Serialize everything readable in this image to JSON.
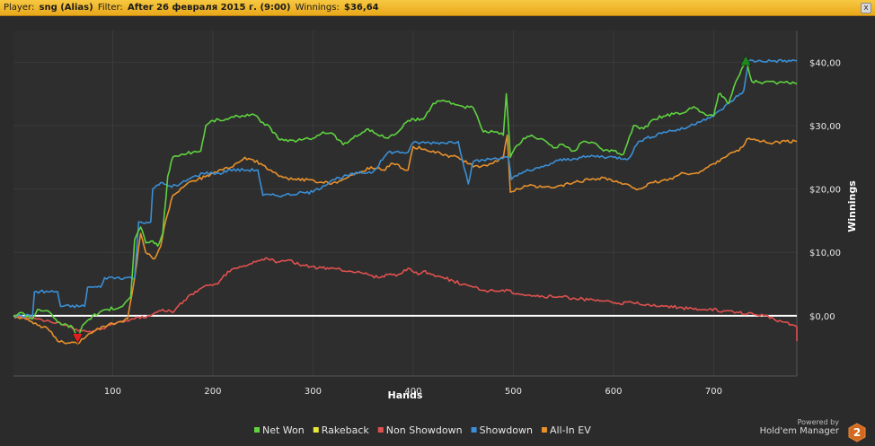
{
  "header": {
    "player_label": "Player:",
    "player_value": "sng (Alias)",
    "filter_label": "Filter:",
    "filter_value": "After 26 февраля 2015 г. (9:00)",
    "winnings_label": "Winnings:",
    "winnings_value": "$36,64",
    "close_glyph": "x"
  },
  "footer": {
    "powered_by": "Powered by",
    "brand": "Hold'em Manager",
    "logo_digit": "2"
  },
  "colors": {
    "background": "#2b2b2b",
    "grid": "#3b3b3b",
    "zero_line": "#ffffff",
    "net_won": "#5ed23f",
    "rakeback": "#e8e83a",
    "non_showdown": "#e0514e",
    "showdown": "#3a8fd6",
    "allin_ev": "#e8912c"
  },
  "chart_data": {
    "type": "line",
    "xlabel": "Hands",
    "ylabel": "Winnings",
    "xlim": [
      1,
      783
    ],
    "ylim": [
      -9.5,
      45
    ],
    "x_ticks": [
      100,
      200,
      300,
      400,
      500,
      600,
      700
    ],
    "y_ticks": [
      {
        "value": 40,
        "label": "$40,00"
      },
      {
        "value": 30,
        "label": "$30,00"
      },
      {
        "value": 20,
        "label": "$20,00"
      },
      {
        "value": 10,
        "label": "$10,00"
      },
      {
        "value": 0,
        "label": "$0,00"
      }
    ],
    "grid": true,
    "legend_position": "bottom",
    "markers": [
      {
        "type": "min",
        "series": "Net Won",
        "x": 65,
        "y": -3.5,
        "color": "#e02020"
      },
      {
        "type": "max",
        "series": "Net Won",
        "x": 732,
        "y": 40.2,
        "color": "#1e8a1e"
      }
    ],
    "series": [
      {
        "name": "Net Won",
        "color": "#5ed23f",
        "points": [
          [
            1,
            0
          ],
          [
            10,
            0.5
          ],
          [
            20,
            -0.5
          ],
          [
            25,
            1
          ],
          [
            35,
            0.8
          ],
          [
            45,
            -1
          ],
          [
            60,
            -1.8
          ],
          [
            65,
            -3.5
          ],
          [
            70,
            -1.5
          ],
          [
            80,
            0
          ],
          [
            95,
            1
          ],
          [
            110,
            1.5
          ],
          [
            118,
            3
          ],
          [
            122,
            12
          ],
          [
            128,
            14
          ],
          [
            133,
            11.5
          ],
          [
            140,
            11.8
          ],
          [
            145,
            11
          ],
          [
            150,
            13
          ],
          [
            155,
            22
          ],
          [
            160,
            25
          ],
          [
            170,
            25.5
          ],
          [
            180,
            25.8
          ],
          [
            188,
            26
          ],
          [
            193,
            30
          ],
          [
            200,
            30.8
          ],
          [
            215,
            31
          ],
          [
            225,
            31.5
          ],
          [
            240,
            31.8
          ],
          [
            250,
            30.5
          ],
          [
            258,
            29.5
          ],
          [
            265,
            28
          ],
          [
            275,
            27.5
          ],
          [
            290,
            27.8
          ],
          [
            300,
            28
          ],
          [
            310,
            29
          ],
          [
            320,
            28.7
          ],
          [
            330,
            27
          ],
          [
            340,
            28
          ],
          [
            355,
            29.5
          ],
          [
            365,
            28.5
          ],
          [
            375,
            28
          ],
          [
            385,
            29
          ],
          [
            395,
            30.8
          ],
          [
            410,
            31
          ],
          [
            420,
            33.5
          ],
          [
            430,
            34
          ],
          [
            440,
            33.5
          ],
          [
            450,
            33
          ],
          [
            460,
            32.8
          ],
          [
            470,
            29
          ],
          [
            480,
            29
          ],
          [
            490,
            28.5
          ],
          [
            493,
            35
          ],
          [
            497,
            25
          ],
          [
            500,
            26
          ],
          [
            510,
            28
          ],
          [
            520,
            28.3
          ],
          [
            530,
            27.8
          ],
          [
            540,
            26.5
          ],
          [
            550,
            27
          ],
          [
            560,
            26
          ],
          [
            570,
            27.5
          ],
          [
            580,
            27.3
          ],
          [
            590,
            26
          ],
          [
            600,
            26
          ],
          [
            610,
            25.5
          ],
          [
            620,
            30
          ],
          [
            630,
            29.5
          ],
          [
            640,
            31
          ],
          [
            650,
            31.5
          ],
          [
            660,
            31.8
          ],
          [
            670,
            32
          ],
          [
            680,
            33
          ],
          [
            690,
            32
          ],
          [
            700,
            31.5
          ],
          [
            705,
            35
          ],
          [
            710,
            34.5
          ],
          [
            715,
            33.5
          ],
          [
            720,
            36
          ],
          [
            728,
            39
          ],
          [
            732,
            40.2
          ],
          [
            738,
            37
          ],
          [
            750,
            36.8
          ],
          [
            765,
            36.8
          ],
          [
            783,
            36.6
          ]
        ]
      },
      {
        "name": "Rakeback",
        "color": "#e8e83a",
        "points": [
          [
            1,
            0
          ],
          [
            783,
            0
          ]
        ]
      },
      {
        "name": "Non Showdown",
        "color": "#e0514e",
        "points": [
          [
            1,
            0
          ],
          [
            25,
            -0.5
          ],
          [
            45,
            -1
          ],
          [
            60,
            -2
          ],
          [
            75,
            -2.5
          ],
          [
            90,
            -2
          ],
          [
            105,
            -1
          ],
          [
            120,
            -0.5
          ],
          [
            135,
            0
          ],
          [
            150,
            1
          ],
          [
            160,
            0.5
          ],
          [
            175,
            3
          ],
          [
            190,
            4.5
          ],
          [
            205,
            5
          ],
          [
            215,
            7
          ],
          [
            225,
            7.5
          ],
          [
            235,
            8
          ],
          [
            245,
            8.7
          ],
          [
            255,
            9
          ],
          [
            265,
            8.5
          ],
          [
            275,
            8.8
          ],
          [
            290,
            8
          ],
          [
            305,
            7.5
          ],
          [
            320,
            7.5
          ],
          [
            335,
            7
          ],
          [
            345,
            7
          ],
          [
            355,
            6.5
          ],
          [
            365,
            6
          ],
          [
            375,
            6.5
          ],
          [
            385,
            6.5
          ],
          [
            395,
            7.5
          ],
          [
            405,
            6.5
          ],
          [
            410,
            7
          ],
          [
            420,
            6.5
          ],
          [
            430,
            6
          ],
          [
            440,
            5.5
          ],
          [
            450,
            5
          ],
          [
            460,
            4.5
          ],
          [
            470,
            4
          ],
          [
            480,
            4
          ],
          [
            495,
            4
          ],
          [
            505,
            3.5
          ],
          [
            515,
            3.3
          ],
          [
            530,
            3
          ],
          [
            545,
            3
          ],
          [
            560,
            2.8
          ],
          [
            575,
            2.5
          ],
          [
            590,
            2.3
          ],
          [
            605,
            2
          ],
          [
            620,
            2
          ],
          [
            635,
            1.8
          ],
          [
            650,
            1.5
          ],
          [
            665,
            1.3
          ],
          [
            680,
            1
          ],
          [
            695,
            1
          ],
          [
            710,
            0.8
          ],
          [
            725,
            0.5
          ],
          [
            740,
            0.2
          ],
          [
            750,
            0
          ],
          [
            760,
            -0.5
          ],
          [
            770,
            -1
          ],
          [
            780,
            -1.5
          ],
          [
            785,
            -2
          ],
          [
            790,
            -2.5
          ],
          [
            800,
            -3
          ],
          [
            808,
            -2
          ],
          [
            815,
            -2.5
          ],
          [
            820,
            -3.5
          ],
          [
            825,
            -4
          ]
        ]
      },
      {
        "name": "Showdown",
        "color": "#3a8fd6",
        "points": [
          [
            1,
            0
          ],
          [
            20,
            0
          ],
          [
            22,
            3.8
          ],
          [
            45,
            3.8
          ],
          [
            48,
            1.5
          ],
          [
            72,
            1.5
          ],
          [
            75,
            4.5
          ],
          [
            88,
            4.5
          ],
          [
            92,
            6
          ],
          [
            122,
            6
          ],
          [
            126,
            14.8
          ],
          [
            138,
            14.8
          ],
          [
            140,
            20
          ],
          [
            150,
            21
          ],
          [
            155,
            20.5
          ],
          [
            165,
            20.5
          ],
          [
            175,
            21.5
          ],
          [
            190,
            22.5
          ],
          [
            210,
            22.5
          ],
          [
            215,
            23
          ],
          [
            245,
            23
          ],
          [
            250,
            19
          ],
          [
            270,
            19
          ],
          [
            285,
            19.3
          ],
          [
            300,
            19.5
          ],
          [
            320,
            21.5
          ],
          [
            345,
            22.5
          ],
          [
            360,
            22.7
          ],
          [
            375,
            25.8
          ],
          [
            395,
            25.8
          ],
          [
            400,
            27.3
          ],
          [
            430,
            27.3
          ],
          [
            445,
            27.5
          ],
          [
            455,
            20.8
          ],
          [
            460,
            24.3
          ],
          [
            480,
            24.8
          ],
          [
            495,
            25
          ],
          [
            498,
            21.5
          ],
          [
            510,
            22.7
          ],
          [
            520,
            23
          ],
          [
            530,
            23.5
          ],
          [
            545,
            24.5
          ],
          [
            560,
            24.8
          ],
          [
            580,
            25.2
          ],
          [
            600,
            25
          ],
          [
            615,
            24.8
          ],
          [
            625,
            27.5
          ],
          [
            650,
            29
          ],
          [
            670,
            29.5
          ],
          [
            690,
            31
          ],
          [
            700,
            31.5
          ],
          [
            715,
            33.5
          ],
          [
            730,
            35.5
          ],
          [
            735,
            40.2
          ],
          [
            783,
            40.2
          ]
        ]
      },
      {
        "name": "All-In EV",
        "color": "#e8912c",
        "points": [
          [
            1,
            0
          ],
          [
            15,
            -0.5
          ],
          [
            25,
            -1.5
          ],
          [
            35,
            -2
          ],
          [
            45,
            -4
          ],
          [
            55,
            -4.3
          ],
          [
            65,
            -4.4
          ],
          [
            75,
            -3
          ],
          [
            85,
            -2
          ],
          [
            95,
            -1.5
          ],
          [
            105,
            -1
          ],
          [
            115,
            -0.5
          ],
          [
            122,
            6
          ],
          [
            128,
            13
          ],
          [
            133,
            10
          ],
          [
            142,
            9
          ],
          [
            148,
            11
          ],
          [
            153,
            15
          ],
          [
            160,
            19
          ],
          [
            172,
            20.5
          ],
          [
            185,
            21.5
          ],
          [
            200,
            22.5
          ],
          [
            210,
            23
          ],
          [
            220,
            23.5
          ],
          [
            232,
            25
          ],
          [
            248,
            24
          ],
          [
            256,
            23
          ],
          [
            266,
            22
          ],
          [
            280,
            21.5
          ],
          [
            295,
            21.5
          ],
          [
            305,
            21
          ],
          [
            320,
            21
          ],
          [
            330,
            21.5
          ],
          [
            345,
            22.5
          ],
          [
            358,
            23.5
          ],
          [
            370,
            23
          ],
          [
            380,
            24
          ],
          [
            395,
            23
          ],
          [
            400,
            26.7
          ],
          [
            420,
            26
          ],
          [
            430,
            25.3
          ],
          [
            445,
            25
          ],
          [
            460,
            23.5
          ],
          [
            478,
            24
          ],
          [
            490,
            25
          ],
          [
            494,
            28.5
          ],
          [
            497,
            19.5
          ],
          [
            505,
            20
          ],
          [
            515,
            20.5
          ],
          [
            525,
            20.3
          ],
          [
            540,
            20.2
          ],
          [
            560,
            21
          ],
          [
            575,
            21.5
          ],
          [
            590,
            21.8
          ],
          [
            605,
            21
          ],
          [
            625,
            20
          ],
          [
            640,
            21
          ],
          [
            655,
            21.5
          ],
          [
            670,
            22.5
          ],
          [
            685,
            22.5
          ],
          [
            700,
            24
          ],
          [
            715,
            25.5
          ],
          [
            725,
            26
          ],
          [
            735,
            28
          ],
          [
            748,
            27.5
          ],
          [
            760,
            27.3
          ],
          [
            772,
            27.5
          ],
          [
            783,
            27.5
          ]
        ]
      }
    ]
  }
}
